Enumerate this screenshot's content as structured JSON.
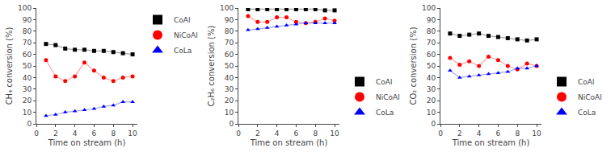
{
  "chart_data": [
    {
      "type": "line",
      "xlabel": "Time on stream (h)",
      "ylabel": "CH₄ conversion (%)",
      "x": [
        1,
        2,
        3,
        4,
        5,
        6,
        7,
        8,
        9,
        10
      ],
      "series": [
        {
          "name": "CoAl",
          "color": "#000000",
          "marker": "square",
          "values": [
            69,
            68,
            65,
            64,
            64,
            63,
            63,
            62,
            61,
            60
          ]
        },
        {
          "name": "NiCoAl",
          "color": "#ff0000",
          "marker": "circle",
          "values": [
            55,
            41,
            37,
            41,
            53,
            46,
            40,
            37,
            40,
            41
          ]
        },
        {
          "name": "CoLa",
          "color": "#0000ff",
          "marker": "triangle-up",
          "values": [
            7,
            8,
            10,
            11,
            12,
            13,
            15,
            16,
            19,
            19
          ]
        }
      ],
      "xlim": [
        0,
        10.5
      ],
      "xticks": [
        0,
        2,
        4,
        6,
        8,
        10
      ],
      "ylim": [
        0,
        100
      ],
      "yticks": [
        0,
        10,
        20,
        30,
        40,
        50,
        60,
        70,
        80,
        90,
        100
      ],
      "grid": false,
      "legend": "upper right"
    },
    {
      "type": "line",
      "xlabel": "Time on stream (h)",
      "ylabel": "C₂H₆ conversion (%)",
      "x": [
        1,
        2,
        3,
        4,
        5,
        6,
        7,
        8,
        9,
        10
      ],
      "series": [
        {
          "name": "CoAl",
          "color": "#000000",
          "marker": "square",
          "values": [
            99,
            99,
            99,
            99,
            99,
            99,
            99,
            99,
            98,
            98
          ]
        },
        {
          "name": "NiCoAl",
          "color": "#ff0000",
          "marker": "circle",
          "values": [
            93,
            88,
            88,
            92,
            92,
            88,
            87,
            88,
            91,
            89
          ]
        },
        {
          "name": "CoLa",
          "color": "#0000ff",
          "marker": "triangle-up",
          "values": [
            81,
            82,
            83,
            84,
            85,
            86,
            87,
            87,
            87,
            87
          ]
        }
      ],
      "xlim": [
        0,
        10.5
      ],
      "xticks": [
        0,
        2,
        4,
        6,
        8,
        10
      ],
      "ylim": [
        0,
        100
      ],
      "yticks": [
        0,
        10,
        20,
        30,
        40,
        50,
        60,
        70,
        80,
        90,
        100
      ],
      "grid": false,
      "legend": "lower right"
    },
    {
      "type": "line",
      "xlabel": "Time on stream (h)",
      "ylabel": "CO₂ conversion (%)",
      "x": [
        1,
        2,
        3,
        4,
        5,
        6,
        7,
        8,
        9,
        10
      ],
      "series": [
        {
          "name": "CoAl",
          "color": "#000000",
          "marker": "square",
          "values": [
            78,
            76,
            77,
            78,
            76,
            75,
            74,
            73,
            72,
            73
          ]
        },
        {
          "name": "NiCoAl",
          "color": "#ff0000",
          "marker": "circle",
          "values": [
            57,
            51,
            54,
            50,
            58,
            55,
            50,
            47,
            52,
            50
          ]
        },
        {
          "name": "CoLa",
          "color": "#0000ff",
          "marker": "triangle-up",
          "values": [
            46,
            40,
            41,
            42,
            43,
            44,
            45,
            48,
            48,
            50
          ]
        }
      ],
      "xlim": [
        0,
        10.5
      ],
      "xticks": [
        0,
        2,
        4,
        6,
        8,
        10
      ],
      "ylim": [
        0,
        100
      ],
      "yticks": [
        0,
        10,
        20,
        30,
        40,
        50,
        60,
        70,
        80,
        90,
        100
      ],
      "grid": false,
      "legend": "lower right"
    }
  ]
}
